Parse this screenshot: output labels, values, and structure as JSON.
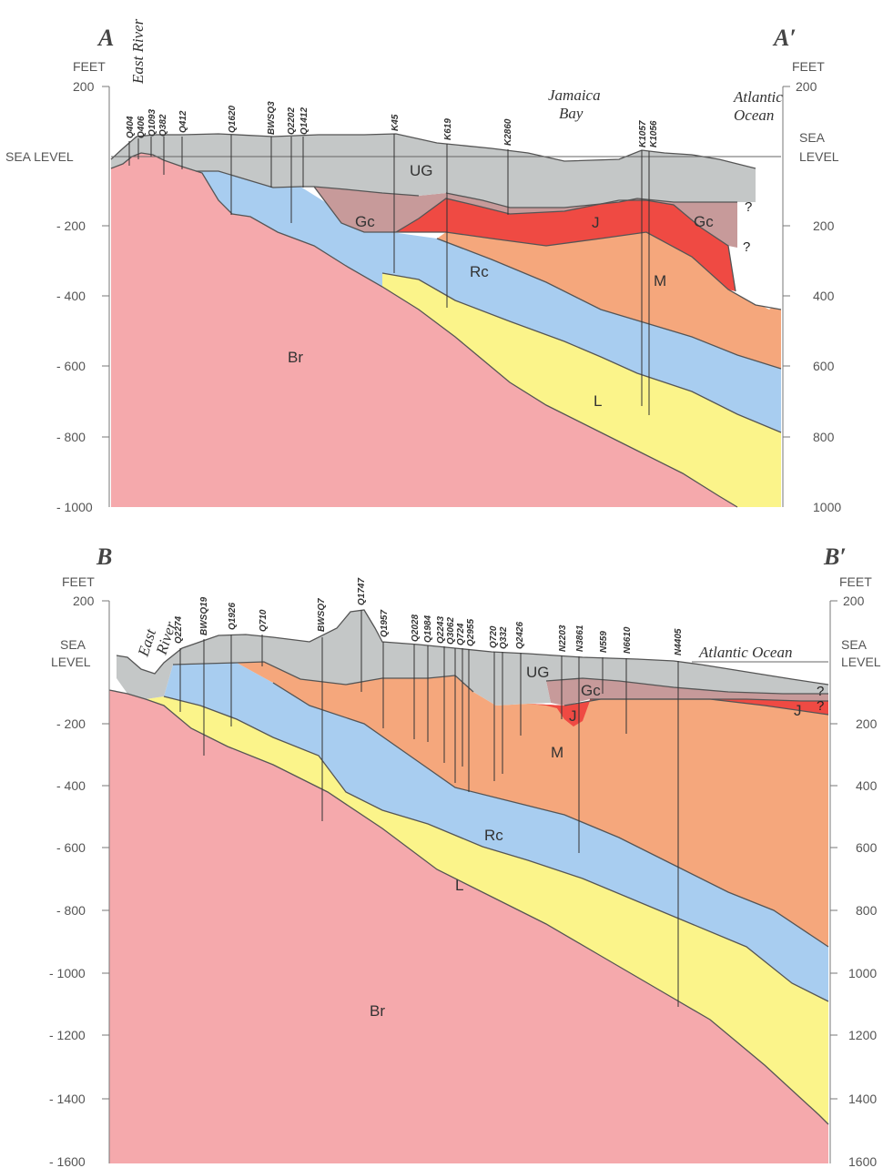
{
  "colors": {
    "Br": "#f5a9ac",
    "L": "#fbf48a",
    "Rc": "#a8cdf0",
    "M": "#f5a77c",
    "J": "#ef4a43",
    "Gc": "#c79a9a",
    "UG": "#c4c7c7"
  },
  "sectionA": {
    "start_label": "A",
    "end_label": "A′",
    "axis_unit": "FEET",
    "sea_level_label": "SEA LEVEL",
    "y_ticks": [
      "200",
      "- 200",
      "- 400",
      "- 600",
      "- 800",
      "- 1000"
    ],
    "right_ticks": [
      "200",
      "200",
      "400",
      "600",
      "800",
      "1000"
    ],
    "features": [
      "East River",
      "Jamaica",
      "Bay",
      "Atlantic",
      "Ocean"
    ],
    "wells": [
      "Q404",
      "Q406",
      "Q1093",
      "Q382",
      "Q412",
      "Q1620",
      "BWSQ3",
      "Q2202",
      "Q1412",
      "K45",
      "K619",
      "K2860",
      "K1057",
      "K1056"
    ],
    "units": [
      "UG",
      "Gc",
      "J",
      "Gc",
      "Rc",
      "M",
      "Br",
      "L"
    ],
    "query_marks": [
      "?",
      "?"
    ]
  },
  "sectionB": {
    "start_label": "B",
    "end_label": "B′",
    "axis_unit": "FEET",
    "sea_level_label_1": "SEA",
    "sea_level_label_2": "LEVEL",
    "y_ticks": [
      "200",
      "- 200",
      "- 400",
      "- 600",
      "- 800",
      "- 1000",
      "- 1200",
      "- 1400",
      "- 1600"
    ],
    "right_ticks": [
      "200",
      "200",
      "400",
      "600",
      "800",
      "1000",
      "1200",
      "1400",
      "1600"
    ],
    "features": [
      "East",
      "River",
      "Atlantic Ocean"
    ],
    "wells": [
      "Q2274",
      "BWSQ19",
      "Q1926",
      "Q710",
      "BWSQ7",
      "Q1747",
      "Q1957",
      "Q2028",
      "Q1984",
      "Q2243",
      "Q3062",
      "Q724",
      "Q2955",
      "Q720",
      "Q332",
      "Q2426",
      "N2203",
      "N3861",
      "N559",
      "N6610",
      "N4405"
    ],
    "units": [
      "UG",
      "Gc",
      "J",
      "J",
      "M",
      "Rc",
      "L",
      "Br"
    ],
    "query_marks": [
      "?",
      "?"
    ]
  }
}
